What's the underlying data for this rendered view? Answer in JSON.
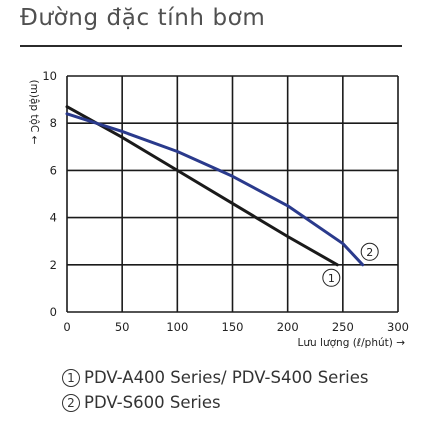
{
  "heading": "Đường đặc tính bơm",
  "chart_data": {
    "type": "line",
    "xlabel": "Lưu lượng (ℓ/phút) →",
    "ylabel": "(m)ập tộC ←",
    "xlim": [
      0,
      300
    ],
    "ylim": [
      0,
      10
    ],
    "x_ticks": [
      0,
      50,
      100,
      150,
      200,
      250,
      300
    ],
    "y_ticks": [
      0,
      2,
      4,
      6,
      8,
      10
    ],
    "grid": true,
    "series": [
      {
        "marker": "1",
        "color": "#1a1a1a",
        "x": [
          0,
          50,
          100,
          150,
          200,
          245
        ],
        "y": [
          8.7,
          7.4,
          6.0,
          4.6,
          3.2,
          2.0
        ]
      },
      {
        "marker": "2",
        "color": "#2a3a8c",
        "x": [
          0,
          50,
          100,
          150,
          200,
          250,
          268
        ],
        "y": [
          8.4,
          7.65,
          6.8,
          5.75,
          4.5,
          2.9,
          2.0
        ]
      }
    ],
    "legend": [
      {
        "marker": "1",
        "label": "PDV-A400 Series/ PDV-S400 Series"
      },
      {
        "marker": "2",
        "label": "PDV-S600 Series"
      }
    ]
  }
}
